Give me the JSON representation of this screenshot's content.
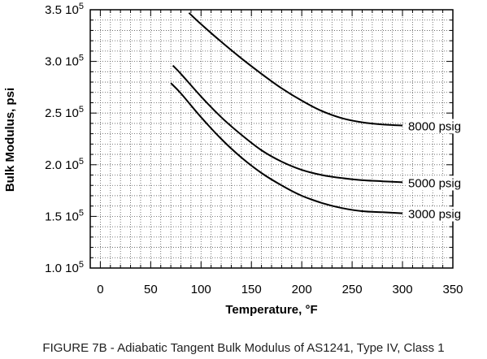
{
  "caption": "FIGURE 7B - Adiabatic Tangent Bulk Modulus of AS1241, Type IV, Class 1",
  "chart_data": {
    "type": "line",
    "title": "",
    "xlabel": "Temperature, °F",
    "ylabel": "Bulk Modulus, psi",
    "xlim": [
      -10,
      350
    ],
    "ylim": [
      100000,
      350000
    ],
    "grid": true,
    "x_ticks": [
      0,
      50,
      100,
      150,
      200,
      250,
      300,
      350
    ],
    "y_ticks": [
      {
        "mantissa": "1.0",
        "exp": "5",
        "value": 100000
      },
      {
        "mantissa": "1.5",
        "exp": "5",
        "value": 150000
      },
      {
        "mantissa": "2.0",
        "exp": "5",
        "value": 200000
      },
      {
        "mantissa": "2.5",
        "exp": "5",
        "value": 250000
      },
      {
        "mantissa": "3.0",
        "exp": "5",
        "value": 300000
      },
      {
        "mantissa": "3.5",
        "exp": "5",
        "value": 350000
      }
    ],
    "series": [
      {
        "name": "8000 psig",
        "x": [
          88,
          100,
          120,
          140,
          160,
          180,
          200,
          220,
          240,
          260,
          280,
          300
        ],
        "y": [
          347000,
          336000,
          319000,
          303000,
          288000,
          274000,
          262000,
          252000,
          245000,
          241000,
          239000,
          238000
        ]
      },
      {
        "name": "5000 psig",
        "x": [
          72,
          80,
          100,
          120,
          140,
          160,
          180,
          200,
          220,
          240,
          260,
          280,
          300
        ],
        "y": [
          296000,
          288000,
          266000,
          246000,
          229000,
          214000,
          203000,
          195000,
          190000,
          187000,
          185000,
          184000,
          183000
        ]
      },
      {
        "name": "3000 psig",
        "x": [
          70,
          80,
          100,
          120,
          140,
          160,
          180,
          200,
          220,
          240,
          260,
          280,
          300
        ],
        "y": [
          279000,
          269000,
          246000,
          225000,
          207000,
          192000,
          180000,
          170000,
          163000,
          158000,
          155000,
          154000,
          153000
        ]
      }
    ]
  }
}
